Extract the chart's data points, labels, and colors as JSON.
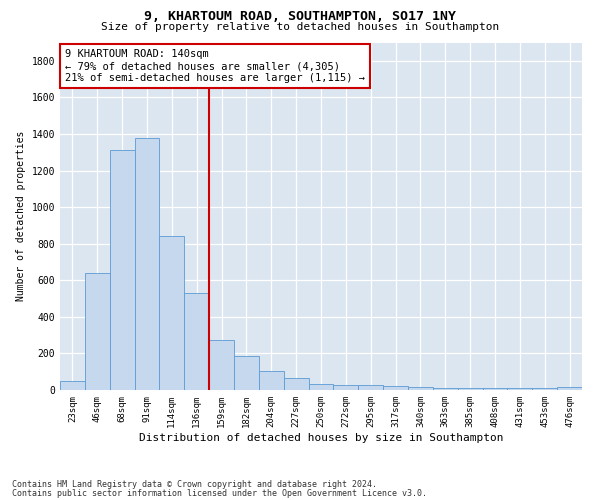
{
  "title1": "9, KHARTOUM ROAD, SOUTHAMPTON, SO17 1NY",
  "title2": "Size of property relative to detached houses in Southampton",
  "xlabel": "Distribution of detached houses by size in Southampton",
  "ylabel": "Number of detached properties",
  "categories": [
    "23sqm",
    "46sqm",
    "68sqm",
    "91sqm",
    "114sqm",
    "136sqm",
    "159sqm",
    "182sqm",
    "204sqm",
    "227sqm",
    "250sqm",
    "272sqm",
    "295sqm",
    "317sqm",
    "340sqm",
    "363sqm",
    "385sqm",
    "408sqm",
    "431sqm",
    "453sqm",
    "476sqm"
  ],
  "values": [
    50,
    640,
    1310,
    1380,
    840,
    530,
    275,
    185,
    105,
    65,
    35,
    30,
    25,
    20,
    15,
    10,
    10,
    10,
    10,
    10,
    15
  ],
  "bar_color": "#c5d8ed",
  "bar_edge_color": "#5b9bd5",
  "vline_color": "#cc0000",
  "vline_linewidth": 1.5,
  "vline_position": 5.5,
  "annotation_text": "9 KHARTOUM ROAD: 140sqm\n← 79% of detached houses are smaller (4,305)\n21% of semi-detached houses are larger (1,115) →",
  "annotation_box_color": "white",
  "annotation_box_edge": "#cc0000",
  "ylim": [
    0,
    1900
  ],
  "yticks": [
    0,
    200,
    400,
    600,
    800,
    1000,
    1200,
    1400,
    1600,
    1800
  ],
  "footnote1": "Contains HM Land Registry data © Crown copyright and database right 2024.",
  "footnote2": "Contains public sector information licensed under the Open Government Licence v3.0.",
  "bg_color": "#dce6f1",
  "grid_color": "white"
}
